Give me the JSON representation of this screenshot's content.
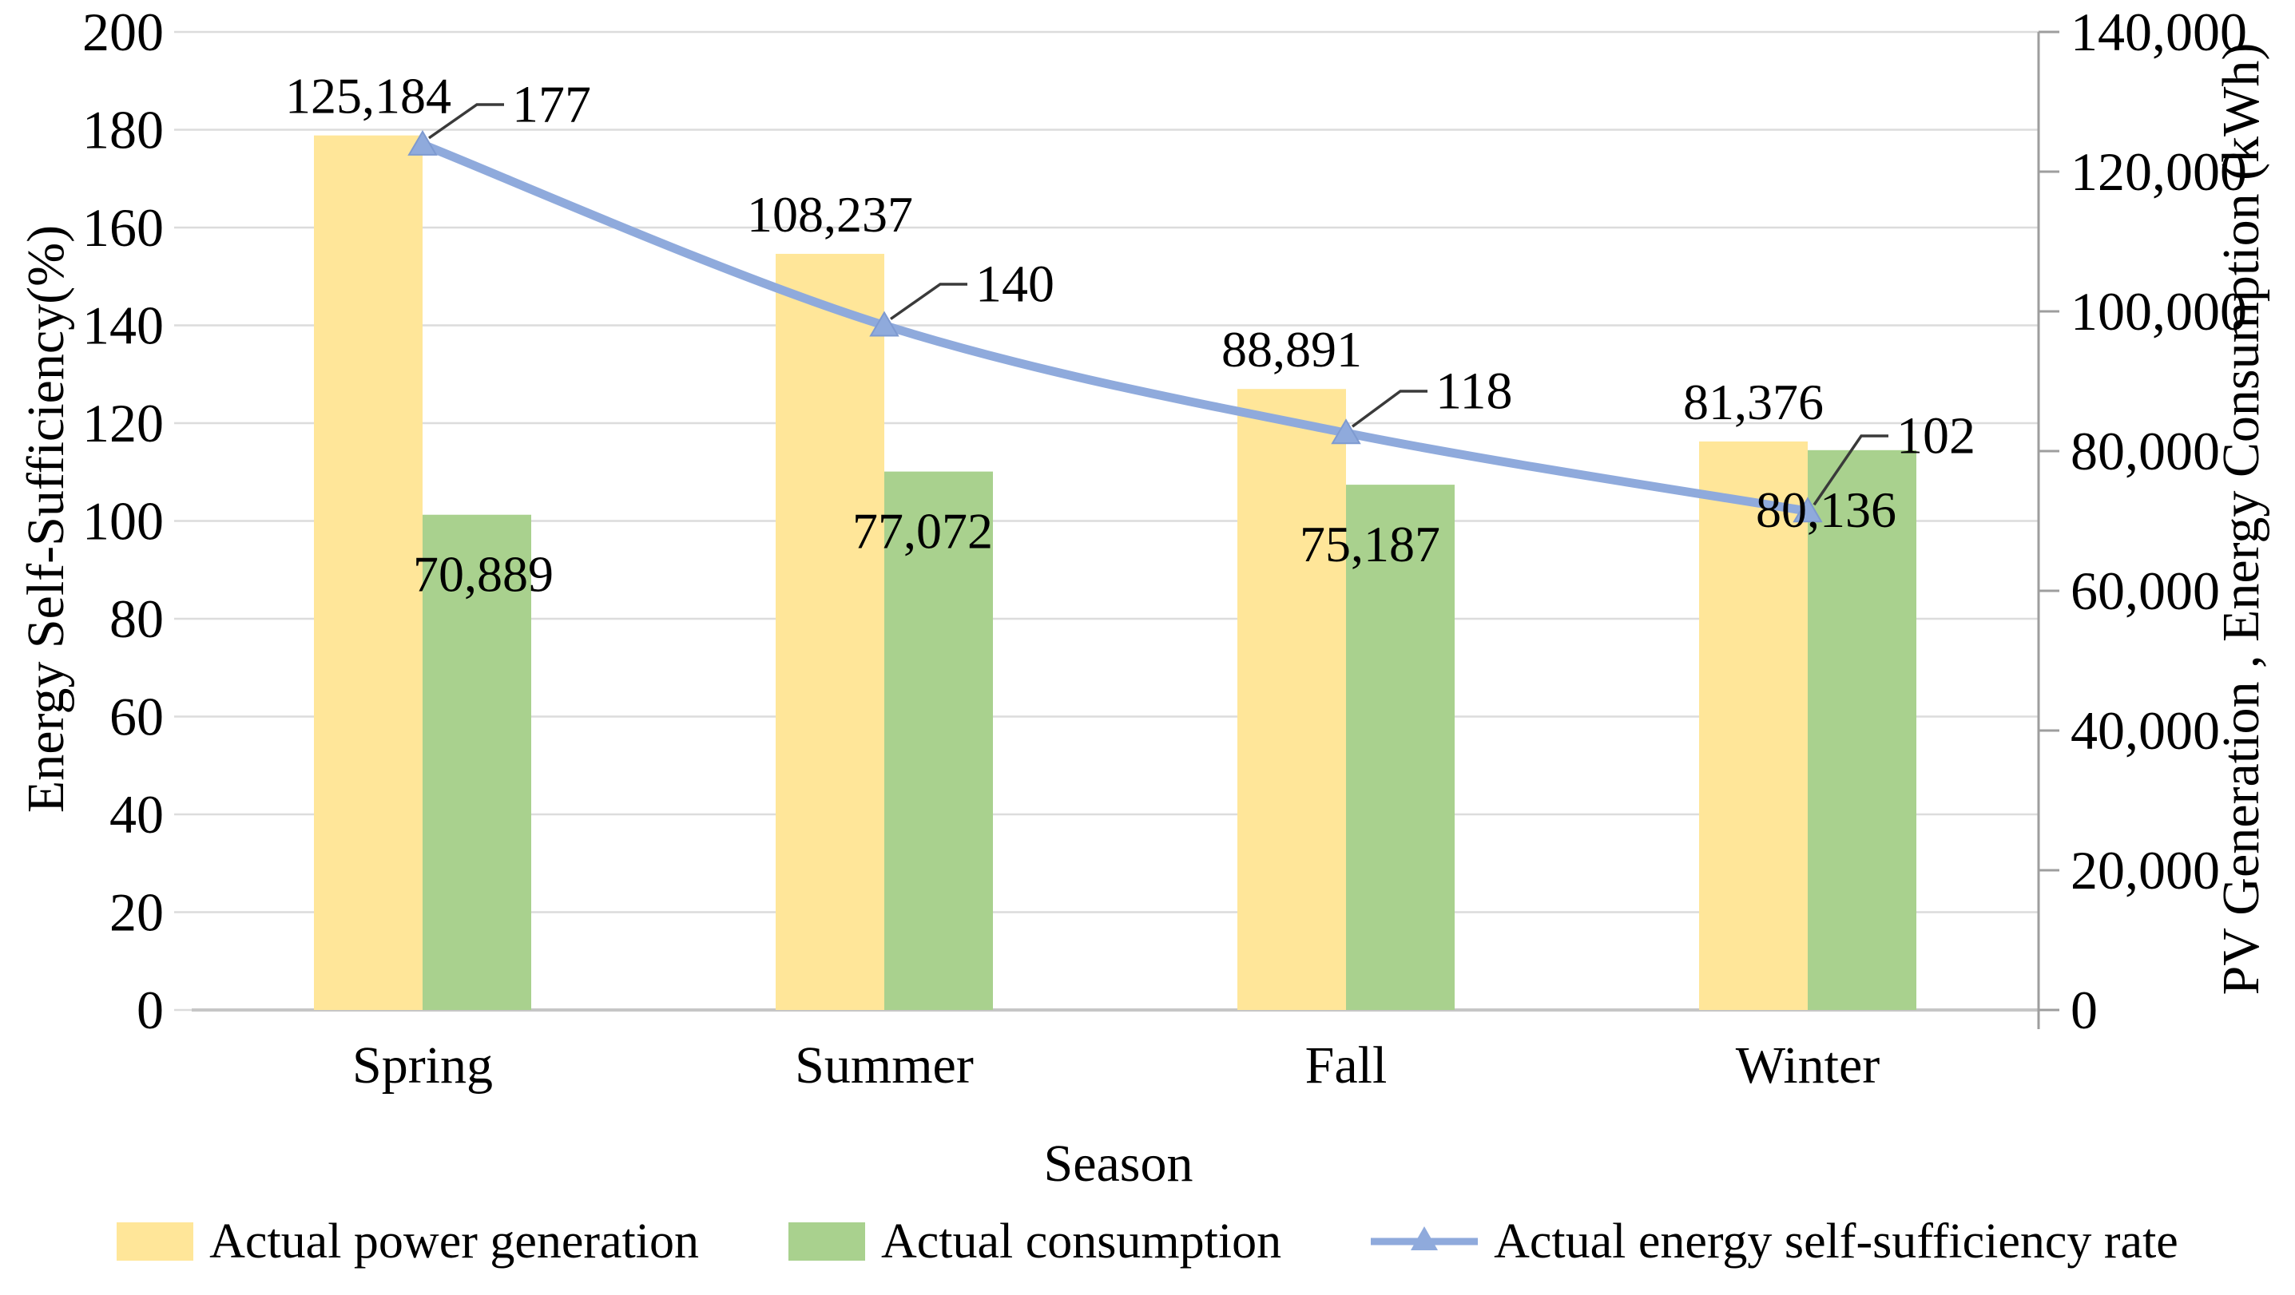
{
  "chart_data": {
    "type": "combo",
    "categories": [
      "Spring",
      "Summer",
      "Fall",
      "Winter"
    ],
    "series": [
      {
        "name": "Actual power generation",
        "type": "bar",
        "axis": "right",
        "color": "#FFE699",
        "values": [
          125184,
          108237,
          88891,
          81376
        ],
        "data_labels": [
          "125,184",
          "108,237",
          "88,891",
          "81,376"
        ]
      },
      {
        "name": "Actual consumption",
        "type": "bar",
        "axis": "right",
        "color": "#A9D18E",
        "values": [
          70889,
          77072,
          75187,
          80136
        ],
        "data_labels": [
          "70,889",
          "77,072",
          "75,187",
          "80,136"
        ]
      },
      {
        "name": "Actual energy self-sufficiency rate",
        "type": "line",
        "axis": "left",
        "color": "#8FAADC",
        "marker": "triangle-up",
        "values": [
          177,
          140,
          118,
          102
        ],
        "data_labels": [
          "177",
          "140",
          "118",
          "102"
        ]
      }
    ],
    "left_axis": {
      "title": "Energy Self-Sufficiency(%)",
      "min": 0,
      "max": 200,
      "step": 20,
      "tick_labels": [
        "0",
        "20",
        "40",
        "60",
        "80",
        "100",
        "120",
        "140",
        "160",
        "180",
        "200"
      ]
    },
    "right_axis": {
      "title": "PV Generation , Energy Consumption (kWh)",
      "min": 0,
      "max": 140000,
      "step": 20000,
      "tick_labels": [
        "0",
        "20,000",
        "40,000",
        "60,000",
        "80,000",
        "100,000",
        "120,000",
        "140,000"
      ]
    },
    "x_axis": {
      "title": "Season"
    },
    "legend_position": "bottom",
    "grid": "horizontal",
    "colors": {
      "gridline": "#DCDCDC",
      "baseline": "#C6C6C6",
      "right_spine": "#9E9E9E",
      "leader": "#3A3A3A",
      "text": "#000000",
      "background": "#FFFFFF"
    }
  }
}
